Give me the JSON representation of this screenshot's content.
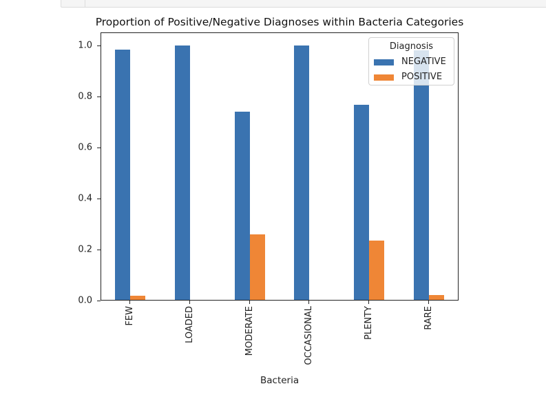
{
  "notebook": {
    "cell_frame": true
  },
  "chart_data": {
    "type": "bar",
    "title": "Proportion of Positive/Negative Diagnoses within Bacteria Categories",
    "xlabel": "Bacteria",
    "ylabel": "",
    "categories": [
      "FEW",
      "LOADED",
      "MODERATE",
      "OCCASIONAL",
      "PLENTY",
      "RARE"
    ],
    "series": [
      {
        "name": "NEGATIVE",
        "color": "#3a73b0",
        "values": [
          0.983,
          1.0,
          0.741,
          1.0,
          0.767,
          0.981
        ]
      },
      {
        "name": "POSITIVE",
        "color": "#ef8636",
        "values": [
          0.017,
          0.0,
          0.259,
          0.0,
          0.233,
          0.019
        ]
      }
    ],
    "yticks": [
      "0.0",
      "0.2",
      "0.4",
      "0.6",
      "0.8",
      "1.0"
    ],
    "ylim": [
      0,
      1.05
    ],
    "grid": false,
    "legend": {
      "title": "Diagnosis",
      "position": "upper right",
      "entries": [
        "NEGATIVE",
        "POSITIVE"
      ]
    }
  }
}
